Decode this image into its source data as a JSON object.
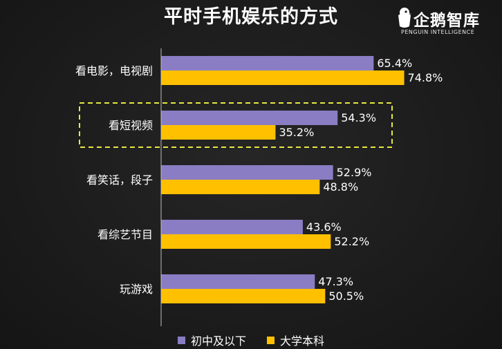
{
  "chart_data": {
    "type": "bar",
    "orientation": "horizontal",
    "title": "平时手机娱乐的方式",
    "categories": [
      "看电影，电视剧",
      "看短视频",
      "看笑话，段子",
      "看综艺节目",
      "玩游戏"
    ],
    "series": [
      {
        "name": "初中及以下",
        "color": "#8a7dc4",
        "values": [
          65.4,
          54.3,
          52.9,
          43.6,
          47.3
        ],
        "labels": [
          "65.4%",
          "54.3%",
          "52.9%",
          "43.6%",
          "47.3%"
        ]
      },
      {
        "name": "大学本科",
        "color": "#ffc000",
        "values": [
          74.8,
          35.2,
          48.8,
          52.2,
          50.5
        ],
        "labels": [
          "74.8%",
          "35.2%",
          "48.8%",
          "52.2%",
          "50.5%"
        ]
      }
    ],
    "highlighted_category": "看短视频",
    "highlight_color": "#e8e843",
    "legend_position": "bottom",
    "grid": false
  },
  "logo": {
    "name": "企鹅智库",
    "subtitle": "PENGUIN INTELLIGENCE"
  }
}
